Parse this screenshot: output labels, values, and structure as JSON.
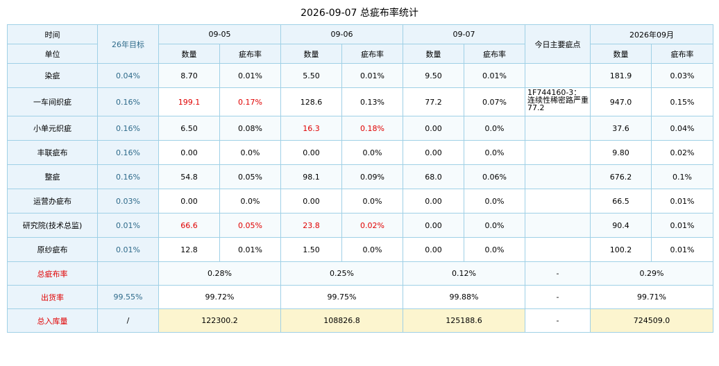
{
  "title": "2026-09-07 总疵布率统计",
  "header": {
    "time": "时间",
    "unit": "单位",
    "target": "26年目标",
    "dates": [
      "09-05",
      "09-06",
      "09-07"
    ],
    "main_defect": "今日主要疵点",
    "month": "2026年09月",
    "qty": "数量",
    "rate": "疵布率"
  },
  "rows": [
    {
      "name": "染疵",
      "target": "0.04%",
      "d1q": "8.70",
      "d1r": "0.01%",
      "d2q": "5.50",
      "d2r": "0.01%",
      "d3q": "9.50",
      "d3r": "0.01%",
      "note": "",
      "mq": "181.9",
      "mr": "0.03%"
    },
    {
      "name": "一车间织疵",
      "target": "0.16%",
      "d1q": "199.1",
      "d1r": "0.17%",
      "d2q": "128.6",
      "d2r": "0.13%",
      "d3q": "77.2",
      "d3r": "0.07%",
      "note": "1F744160-3：连续性稀密路严重77.2",
      "mq": "947.0",
      "mr": "0.15%"
    },
    {
      "name": "小单元织疵",
      "target": "0.16%",
      "d1q": "6.50",
      "d1r": "0.08%",
      "d2q": "16.3",
      "d2r": "0.18%",
      "d3q": "0.00",
      "d3r": "0.0%",
      "note": "",
      "mq": "37.6",
      "mr": "0.04%"
    },
    {
      "name": "丰联疵布",
      "target": "0.16%",
      "d1q": "0.00",
      "d1r": "0.0%",
      "d2q": "0.00",
      "d2r": "0.0%",
      "d3q": "0.00",
      "d3r": "0.0%",
      "note": "",
      "mq": "9.80",
      "mr": "0.02%"
    },
    {
      "name": "整疵",
      "target": "0.16%",
      "d1q": "54.8",
      "d1r": "0.05%",
      "d2q": "98.1",
      "d2r": "0.09%",
      "d3q": "68.0",
      "d3r": "0.06%",
      "note": "",
      "mq": "676.2",
      "mr": "0.1%"
    },
    {
      "name": "运营办疵布",
      "target": "0.03%",
      "d1q": "0.00",
      "d1r": "0.0%",
      "d2q": "0.00",
      "d2r": "0.0%",
      "d3q": "0.00",
      "d3r": "0.0%",
      "note": "",
      "mq": "66.5",
      "mr": "0.01%"
    },
    {
      "name": "研究院(技术总监)",
      "target": "0.01%",
      "d1q": "66.6",
      "d1r": "0.05%",
      "d2q": "23.8",
      "d2r": "0.02%",
      "d3q": "0.00",
      "d3r": "0.0%",
      "note": "",
      "mq": "90.4",
      "mr": "0.01%"
    },
    {
      "name": "原纱疵布",
      "target": "0.01%",
      "d1q": "12.8",
      "d1r": "0.01%",
      "d2q": "1.50",
      "d2r": "0.0%",
      "d3q": "0.00",
      "d3r": "0.0%",
      "note": "",
      "mq": "100.2",
      "mr": "0.01%"
    }
  ],
  "summary": [
    {
      "name": "总疵布率",
      "target": "",
      "d1": "0.28%",
      "d2": "0.25%",
      "d3": "0.12%",
      "note": "-",
      "month": "0.29%"
    },
    {
      "name": "出货率",
      "target": "99.55%",
      "d1": "99.72%",
      "d2": "99.75%",
      "d3": "99.88%",
      "note": "-",
      "month": "99.71%"
    },
    {
      "name": "总入库量",
      "target": "/",
      "d1": "122300.2",
      "d2": "108826.8",
      "d3": "125188.6",
      "note": "-",
      "month": "724509.0"
    }
  ],
  "colors": {
    "header_bg": "#eaf4fb",
    "border": "#9fd0e6",
    "target_text": "#2e6a8a",
    "alert_red": "#e00000",
    "stripe_bg": "#f6fbfd",
    "storage_highlight": "#fcf5cf"
  }
}
